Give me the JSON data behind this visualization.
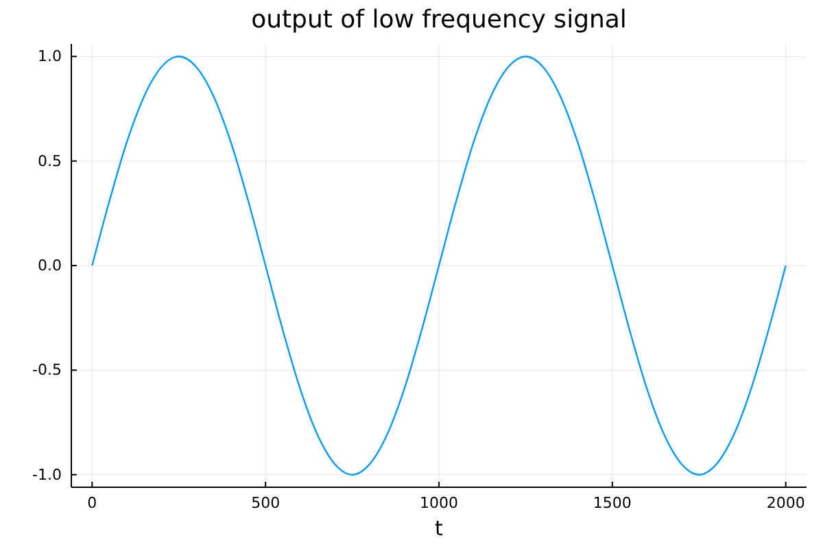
{
  "chart_data": {
    "type": "line",
    "title": "output of low frequency signal",
    "xlabel": "t",
    "x": [
      0,
      50,
      100,
      150,
      200,
      250,
      300,
      350,
      400,
      450,
      500,
      550,
      600,
      650,
      700,
      750,
      800,
      850,
      900,
      950,
      1000,
      1050,
      1100,
      1150,
      1200,
      1250,
      1300,
      1350,
      1400,
      1450,
      1500,
      1550,
      1600,
      1650,
      1700,
      1750,
      1800,
      1850,
      1900,
      1950,
      2000
    ],
    "series": [
      {
        "color": "#009af9",
        "values": [
          0,
          0.31,
          0.59,
          0.81,
          0.95,
          1,
          0.95,
          0.81,
          0.59,
          0.31,
          0,
          -0.31,
          -0.59,
          -0.81,
          -0.95,
          -1,
          -0.95,
          -0.81,
          -0.59,
          -0.31,
          0,
          0.31,
          0.59,
          0.81,
          0.95,
          1,
          0.95,
          0.81,
          0.59,
          0.31,
          0,
          -0.31,
          -0.59,
          -0.81,
          -0.95,
          -1,
          -0.95,
          -0.81,
          -0.59,
          -0.31,
          0
        ]
      }
    ],
    "xlim": [
      -60,
      2060
    ],
    "ylim": [
      -1.06,
      1.06
    ],
    "xticks": [
      0,
      500,
      1000,
      1500,
      2000
    ],
    "yticks": [
      {
        "value": -1,
        "label": "-1.0"
      },
      {
        "value": -0.5,
        "label": "-0.5"
      },
      {
        "value": 0,
        "label": "0.0"
      },
      {
        "value": 0.5,
        "label": "0.5"
      },
      {
        "value": 1,
        "label": "1.0"
      }
    ],
    "grid": true,
    "marker": "none",
    "line_style": "solid"
  }
}
